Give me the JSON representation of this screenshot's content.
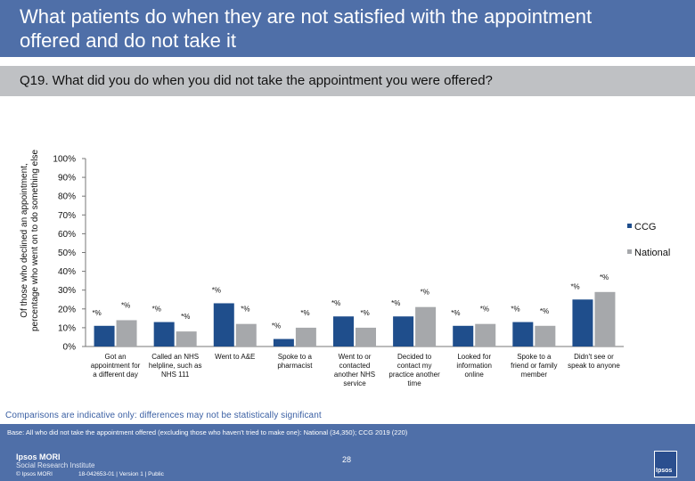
{
  "title": "What patients do when they are not satisfied with the appointment offered and do not take it",
  "question": "Q19. What did you do when you did not take the appointment you were offered?",
  "note": "Comparisons are indicative only: differences may not be statistically significant",
  "footer": {
    "base": "Base: All who did not take the appointment offered (excluding those who haven’t tried to make one): National (34,350); CCG 2019 (220)",
    "brand_name": "Ipsos MORI",
    "brand_sub": "Social Research Institute",
    "copyright": "© Ipsos MORI",
    "job_id": "18-042653-01 | Version 1 | Public",
    "page_number": "28",
    "logo_text": "Ipsos"
  },
  "colors": {
    "ccg": "#1f4e8c",
    "national": "#a6a8ab",
    "header": "#4f6fa8",
    "question_bar": "#bfc1c4",
    "note_text": "#3a5fa3"
  },
  "chart_data": {
    "type": "bar",
    "ylabel": "Of those who declined an appointment, percentage who went on to do something else",
    "ylim": [
      0,
      100
    ],
    "yticks": [
      "0%",
      "10%",
      "20%",
      "30%",
      "40%",
      "50%",
      "60%",
      "70%",
      "80%",
      "90%",
      "100%"
    ],
    "grid": false,
    "legend_position": "right",
    "categories": [
      [
        "Got an",
        "appointment for",
        "a different day"
      ],
      [
        "Called an NHS",
        "helpline, such as",
        "NHS 111"
      ],
      [
        "Went to A&E"
      ],
      [
        "Spoke to a",
        "pharmacist"
      ],
      [
        "Went to or",
        "contacted",
        "another NHS",
        "service"
      ],
      [
        "Decided to",
        "contact my",
        "practice another",
        "time"
      ],
      [
        "Looked for",
        "information",
        "online"
      ],
      [
        "Spoke to a",
        "friend or family",
        "member"
      ],
      [
        "Didn't see or",
        "speak to anyone"
      ]
    ],
    "series": [
      {
        "name": "CCG",
        "values": [
          11,
          13,
          23,
          4,
          16,
          16,
          11,
          13,
          25
        ],
        "labels": [
          "*%",
          "*%",
          "*%",
          "*%",
          "*%",
          "*%",
          "*%",
          "*%",
          "*%"
        ]
      },
      {
        "name": "National",
        "values": [
          14,
          8,
          12,
          10,
          10,
          21,
          12,
          11,
          29
        ],
        "labels": [
          "*%",
          "*%",
          "*%",
          "*%",
          "*%",
          "*%",
          "*%",
          "*%",
          "*%"
        ]
      }
    ]
  }
}
